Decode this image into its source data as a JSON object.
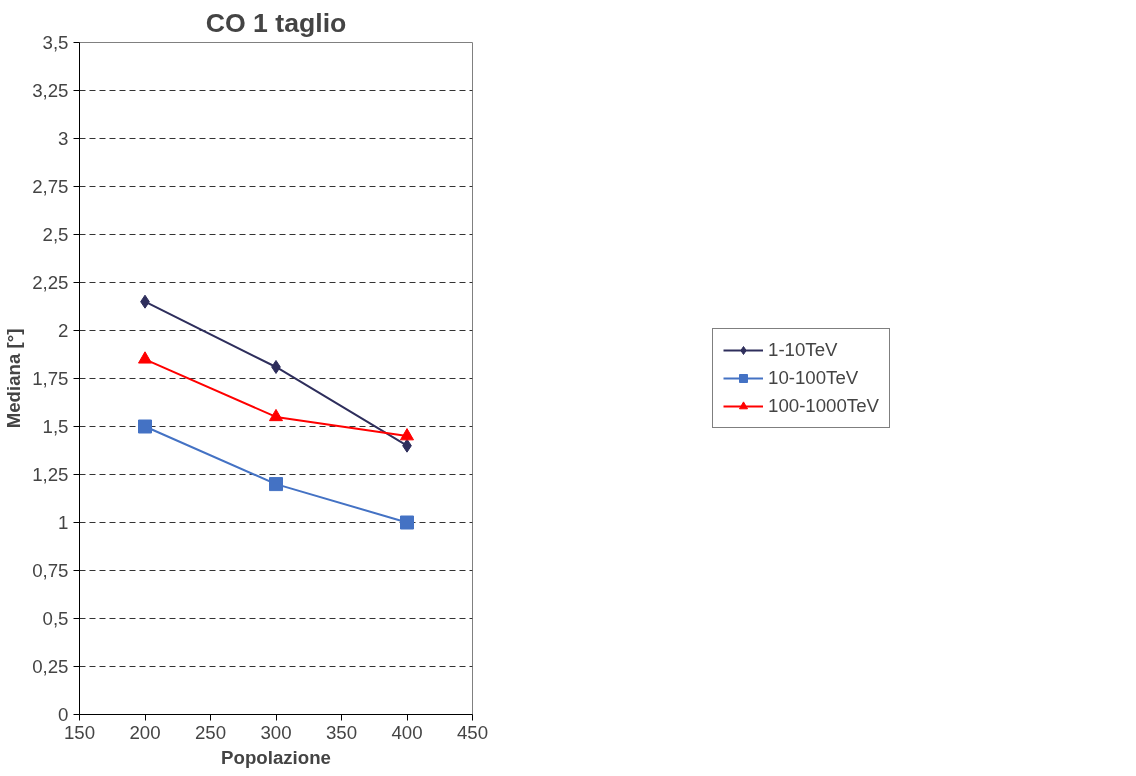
{
  "chart_data": {
    "type": "line",
    "title": "CO 1 taglio",
    "xlabel": "Popolazione",
    "ylabel": "Mediana [°]",
    "x": [
      200,
      300,
      400
    ],
    "series": [
      {
        "name": "1-10TeV",
        "color": "#2e2e5c",
        "marker": "diamond",
        "values": [
          2.15,
          1.81,
          1.4
        ]
      },
      {
        "name": "10-100TeV",
        "color": "#4472c4",
        "marker": "square",
        "values": [
          1.5,
          1.2,
          1.0
        ]
      },
      {
        "name": "100-1000TeV",
        "color": "#ff0000",
        "marker": "triangle",
        "values": [
          1.85,
          1.55,
          1.45
        ]
      }
    ],
    "xlim": [
      150,
      450
    ],
    "xticks": [
      150,
      200,
      250,
      300,
      350,
      400,
      450
    ],
    "ylim": [
      0,
      3.5
    ],
    "yticks": [
      0,
      {
        "value": 0.25,
        "label": "0,25"
      },
      {
        "value": 0.5,
        "label": "0,5"
      },
      {
        "value": 0.75,
        "label": "0,75"
      },
      1,
      {
        "value": 1.25,
        "label": "1,25"
      },
      {
        "value": 1.5,
        "label": "1,5"
      },
      {
        "value": 1.75,
        "label": "1,75"
      },
      2,
      {
        "value": 2.25,
        "label": "2,25"
      },
      {
        "value": 2.5,
        "label": "2,5"
      },
      {
        "value": 2.75,
        "label": "2,75"
      },
      3,
      {
        "value": 3.25,
        "label": "3,25"
      },
      {
        "value": 3.5,
        "label": "3,5"
      }
    ],
    "grid": "y",
    "legend": "right",
    "line_style": "solid"
  }
}
